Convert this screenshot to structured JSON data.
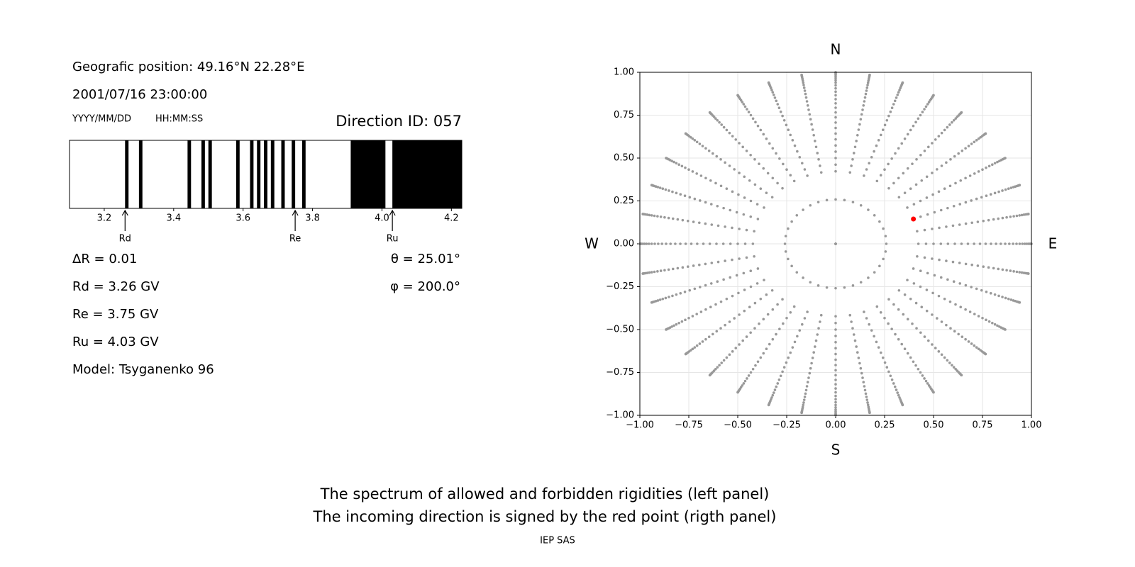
{
  "info": {
    "position": "Geografic position: 49.16°N 22.28°E",
    "datetime": "2001/07/16 23:00:00",
    "date_format": "YYYY/MM/DD",
    "time_format": "HH:MM:SS",
    "direction_id": "Direction ID: 057",
    "delta_r": "ΔR = 0.01",
    "rd": "Rd = 3.26 GV",
    "re": "Re = 3.75 GV",
    "ru": "Ru = 4.03 GV",
    "theta": "θ = 25.01°",
    "phi": "φ = 200.0°",
    "model": "Model: Tsyganenko 96"
  },
  "caption": [
    "The spectrum of allowed and forbidden rigidities (left panel)",
    "The incoming direction is signed by the red point (rigth panel)"
  ],
  "footer": "IEP SAS",
  "chart_data": [
    {
      "type": "bands",
      "xlim": [
        3.1,
        4.23
      ],
      "xticks": [
        3.2,
        3.4,
        3.6,
        3.8,
        {
          "value": 4,
          "label": "4.0"
        },
        4.2
      ],
      "color": "#000000",
      "bands": [
        [
          3.26,
          3.27
        ],
        [
          3.3,
          3.31
        ],
        [
          3.44,
          3.45
        ],
        [
          3.48,
          3.49
        ],
        [
          3.5,
          3.51
        ],
        [
          3.58,
          3.59
        ],
        [
          3.62,
          3.63
        ],
        [
          3.64,
          3.65
        ],
        [
          3.66,
          3.67
        ],
        [
          3.68,
          3.69
        ],
        [
          3.71,
          3.72
        ],
        [
          3.74,
          3.75
        ],
        [
          3.77,
          3.78
        ],
        [
          3.91,
          4.01
        ],
        [
          4.03,
          4.23
        ]
      ],
      "markers": [
        {
          "label": "Rd",
          "value": 3.26
        },
        {
          "label": "Re",
          "value": 3.75
        },
        {
          "label": "Ru",
          "value": 4.03
        }
      ]
    },
    {
      "type": "sky",
      "xlim": [
        -1,
        1
      ],
      "ylim": [
        -1,
        1
      ],
      "xticks": [
        {
          "value": -1,
          "label": "−1.00"
        },
        {
          "value": -0.75,
          "label": "−0.75"
        },
        {
          "value": -0.5,
          "label": "−0.50"
        },
        {
          "value": -0.25,
          "label": "−0.25"
        },
        {
          "value": 0,
          "label": "0.00"
        },
        {
          "value": 0.25,
          "label": "0.25"
        },
        {
          "value": 0.5,
          "label": "0.50"
        },
        {
          "value": 0.75,
          "label": "0.75"
        },
        {
          "value": 1,
          "label": "1.00"
        }
      ],
      "yticks": [
        {
          "value": -1,
          "label": "−1.00"
        },
        {
          "value": -0.75,
          "label": "−0.75"
        },
        {
          "value": -0.5,
          "label": "−0.50"
        },
        {
          "value": -0.25,
          "label": "−0.25"
        },
        {
          "value": 0,
          "label": "0.00"
        },
        {
          "value": 0.25,
          "label": "0.25"
        },
        {
          "value": 0.5,
          "label": "0.50"
        },
        {
          "value": 0.75,
          "label": "0.75"
        },
        {
          "value": 1,
          "label": "1.00"
        }
      ],
      "grid": true,
      "labels": {
        "north": "N",
        "south": "S",
        "west": "W",
        "east": "E"
      },
      "color": "#999999",
      "zenith": [
        0,
        15,
        25,
        27.5,
        30,
        32.5,
        35,
        37.5,
        40,
        42.5,
        45,
        47.5,
        50,
        52.5,
        55,
        57.5,
        60,
        62.5,
        65,
        67.5,
        70,
        72.5,
        75,
        77.5,
        80,
        82.5,
        85,
        87.5,
        90
      ],
      "azimuth": [
        0,
        10,
        20,
        30,
        40,
        50,
        60,
        70,
        80,
        90,
        100,
        110,
        120,
        130,
        140,
        150,
        160,
        170,
        180,
        190,
        200,
        210,
        220,
        230,
        240,
        250,
        260,
        270,
        280,
        290,
        300,
        310,
        320,
        330,
        340,
        350
      ],
      "point": {
        "theta": 25.01,
        "phi": 200.0,
        "color": "#ff0000"
      }
    }
  ]
}
